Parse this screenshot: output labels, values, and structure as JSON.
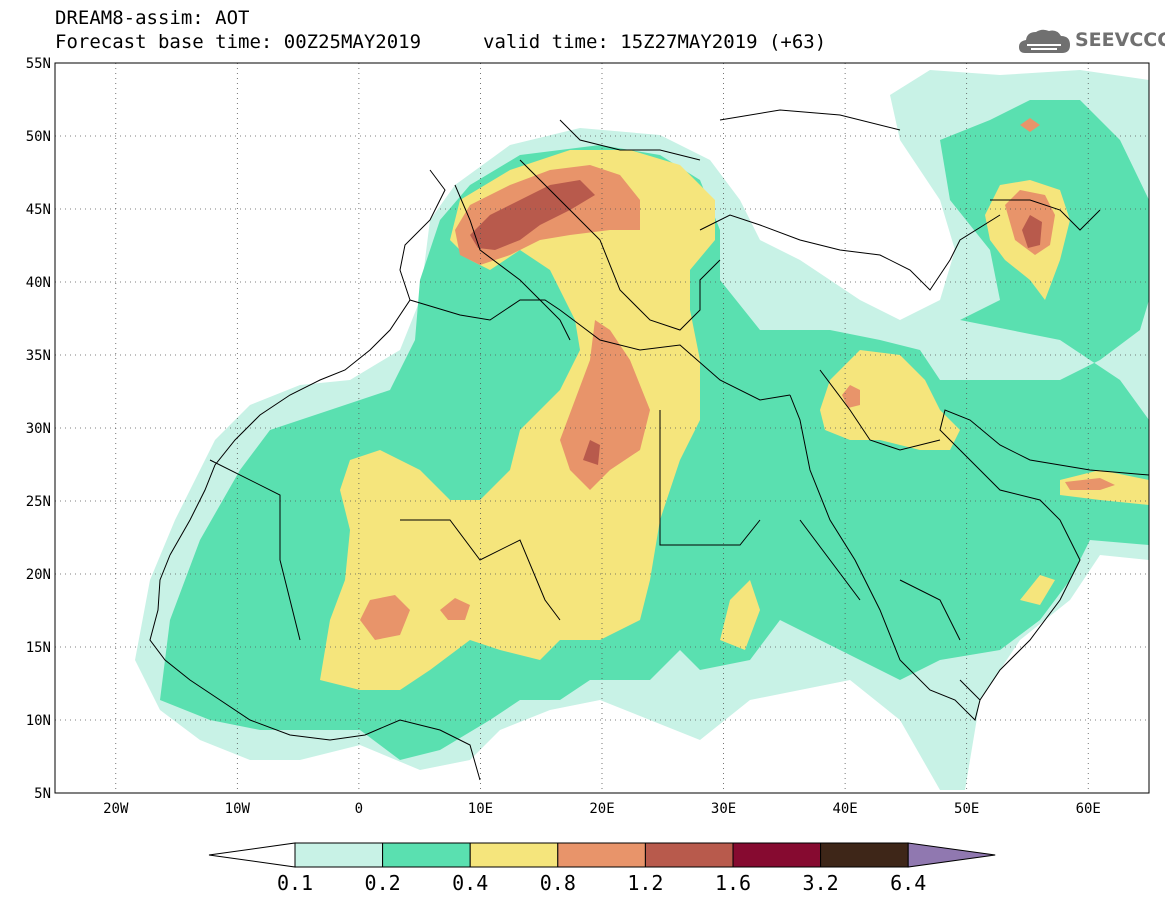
{
  "header": {
    "title": "DREAM8-assim: AOT",
    "base_time": "Forecast base time: 00Z25MAY2019",
    "valid_time": "valid time: 15Z27MAY2019 (+63)"
  },
  "logo": {
    "text": "SEEVCCC",
    "icon": "cloud-icon"
  },
  "map": {
    "projection": "lat-lon",
    "lon_range": [
      -25,
      65
    ],
    "lat_range": [
      5,
      55
    ],
    "lat_ticks": [
      "5N",
      "10N",
      "15N",
      "20N",
      "25N",
      "30N",
      "35N",
      "40N",
      "45N",
      "50N",
      "55N"
    ],
    "lon_ticks": [
      "20W",
      "10W",
      "0",
      "10E",
      "20E",
      "30E",
      "40E",
      "50E",
      "60E"
    ],
    "grid": "dotted"
  },
  "colorbar": {
    "labels": [
      "0.1",
      "0.2",
      "0.4",
      "0.8",
      "1.2",
      "1.6",
      "3.2",
      "6.4"
    ],
    "colors": [
      "#c8f2e6",
      "#5ae0b0",
      "#f5e57c",
      "#e8946a",
      "#b85a4c",
      "#860a30",
      "#3e2618",
      "#9078b0"
    ],
    "below_color": "#ffffff"
  }
}
